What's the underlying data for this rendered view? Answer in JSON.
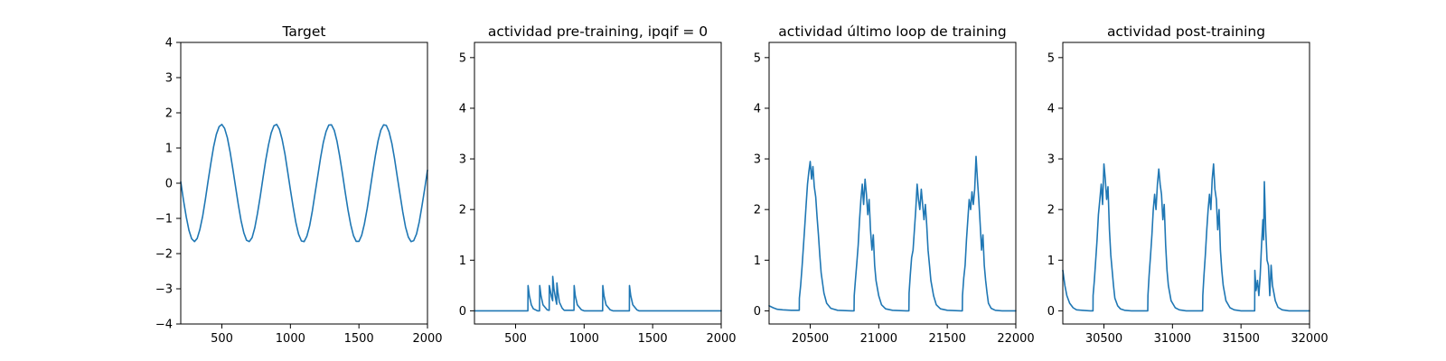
{
  "figure": {
    "line_color": "#1f77b4"
  },
  "chart_data": [
    {
      "type": "line",
      "title": "Target",
      "xlim": [
        200,
        2000
      ],
      "ylim": [
        -4,
        4
      ],
      "xticks": [
        500,
        1000,
        1500,
        2000
      ],
      "yticks": [
        -4,
        -3,
        -2,
        -1,
        0,
        1,
        2,
        3,
        4
      ],
      "xtick_labels": [
        "500",
        "1000",
        "1500",
        "2000"
      ],
      "ytick_labels": [
        "−4",
        "−3",
        "−2",
        "−1",
        "0",
        "1",
        "2",
        "3",
        "4"
      ],
      "series": [
        {
          "x": [
            200,
            220,
            240,
            260,
            280,
            300,
            320,
            340,
            360,
            380,
            400,
            420,
            440,
            460,
            480,
            500,
            520,
            540,
            560,
            580,
            600,
            620,
            640,
            660,
            680,
            700,
            720,
            740,
            760,
            780,
            800,
            820,
            840,
            860,
            880,
            900,
            920,
            940,
            960,
            980,
            1000,
            1020,
            1040,
            1060,
            1080,
            1100,
            1120,
            1140,
            1160,
            1180,
            1200,
            1220,
            1240,
            1260,
            1280,
            1300,
            1320,
            1340,
            1360,
            1380,
            1400,
            1420,
            1440,
            1460,
            1480,
            1500,
            1520,
            1540,
            1560,
            1580,
            1600,
            1620,
            1640,
            1660,
            1680,
            1700,
            1720,
            1740,
            1760,
            1780,
            1800,
            1820,
            1840,
            1860,
            1880,
            1900,
            1920,
            1940,
            1960,
            1980,
            2000
          ],
          "y": [
            0.04,
            -0.48,
            -0.96,
            -1.34,
            -1.58,
            -1.66,
            -1.57,
            -1.31,
            -0.93,
            -0.45,
            0.07,
            0.58,
            1.04,
            1.39,
            1.61,
            1.67,
            1.56,
            1.29,
            0.89,
            0.41,
            -0.11,
            -0.61,
            -1.06,
            -1.41,
            -1.62,
            -1.66,
            -1.55,
            -1.27,
            -0.86,
            -0.37,
            0.15,
            0.65,
            1.09,
            1.43,
            1.63,
            1.67,
            1.53,
            1.24,
            0.83,
            0.33,
            -0.18,
            -0.68,
            -1.12,
            -1.45,
            -1.64,
            -1.66,
            -1.51,
            -1.21,
            -0.79,
            -0.29,
            0.22,
            0.72,
            1.15,
            1.47,
            1.65,
            1.66,
            1.5,
            1.19,
            0.76,
            0.26,
            -0.26,
            -0.75,
            -1.18,
            -1.49,
            -1.65,
            -1.65,
            -1.48,
            -1.16,
            -0.72,
            -0.22,
            0.29,
            0.79,
            1.21,
            1.51,
            1.66,
            1.64,
            1.46,
            1.13,
            0.69,
            0.18,
            -0.33,
            -0.82,
            -1.24,
            -1.53,
            -1.66,
            -1.63,
            -1.44,
            -1.1,
            -0.65,
            -0.15,
            0.37
          ]
        }
      ]
    },
    {
      "type": "line",
      "title": "actividad pre-training, ipqif = 0",
      "xlim": [
        200,
        2000
      ],
      "ylim": [
        -0.26,
        5.3
      ],
      "xticks": [
        500,
        1000,
        1500,
        2000
      ],
      "yticks": [
        0,
        1,
        2,
        3,
        4,
        5
      ],
      "xtick_labels": [
        "500",
        "1000",
        "1500",
        "2000"
      ],
      "ytick_labels": [
        "0",
        "1",
        "2",
        "3",
        "4",
        "5"
      ],
      "series": [
        {
          "x": [
            200,
            400,
            590,
            591,
            600,
            615,
            630,
            660,
            675,
            676,
            685,
            700,
            730,
            745,
            746,
            752,
            762,
            770,
            771,
            780,
            795,
            800,
            801,
            808,
            820,
            840,
            855,
            926,
            927,
            935,
            950,
            980,
            1000,
            1135,
            1136,
            1145,
            1160,
            1190,
            1210,
            1330,
            1331,
            1340,
            1355,
            1385,
            1400,
            1700,
            2000
          ],
          "y": [
            0,
            0,
            0,
            0.5,
            0.3,
            0.12,
            0.04,
            0,
            0,
            0.5,
            0.3,
            0.12,
            0.02,
            0.01,
            0.5,
            0.42,
            0.28,
            0.2,
            0.68,
            0.42,
            0.2,
            0.13,
            0.55,
            0.38,
            0.17,
            0.05,
            0.01,
            0.01,
            0.5,
            0.3,
            0.12,
            0.02,
            0,
            0,
            0.5,
            0.3,
            0.12,
            0.02,
            0,
            0,
            0.5,
            0.3,
            0.12,
            0.02,
            0,
            0,
            0
          ]
        }
      ]
    },
    {
      "type": "line",
      "title": "actividad último loop de training",
      "xlim": [
        20200,
        22000
      ],
      "ylim": [
        -0.26,
        5.3
      ],
      "xticks": [
        20500,
        21000,
        21500,
        22000
      ],
      "yticks": [
        0,
        1,
        2,
        3,
        4,
        5
      ],
      "xtick_labels": [
        "20500",
        "21000",
        "21500",
        "22000"
      ],
      "ytick_labels": [
        "0",
        "1",
        "2",
        "3",
        "4",
        "5"
      ],
      "series": [
        {
          "x": [
            20200,
            20230,
            20260,
            20300,
            20360,
            20420,
            20421,
            20430,
            20440,
            20450,
            20460,
            20470,
            20480,
            20490,
            20500,
            20510,
            20520,
            20530,
            20540,
            20550,
            20560,
            20570,
            20580,
            20600,
            20620,
            20650,
            20700,
            20800,
            20820,
            20821,
            20830,
            20840,
            20850,
            20860,
            20870,
            20880,
            20890,
            20900,
            20910,
            20920,
            20930,
            20940,
            20950,
            20960,
            20970,
            20980,
            21000,
            21020,
            21050,
            21100,
            21200,
            21220,
            21221,
            21230,
            21240,
            21250,
            21260,
            21270,
            21280,
            21290,
            21300,
            21310,
            21320,
            21330,
            21340,
            21350,
            21360,
            21370,
            21380,
            21400,
            21420,
            21450,
            21500,
            21600,
            21610,
            21611,
            21620,
            21630,
            21640,
            21650,
            21660,
            21670,
            21680,
            21690,
            21700,
            21710,
            21720,
            21730,
            21740,
            21750,
            21760,
            21770,
            21780,
            21790,
            21800,
            21820,
            21850,
            21900,
            22000
          ],
          "y": [
            0.1,
            0.06,
            0.03,
            0.02,
            0.01,
            0.01,
            0.25,
            0.5,
            0.85,
            1.25,
            1.65,
            2.1,
            2.5,
            2.75,
            2.95,
            2.6,
            2.85,
            2.45,
            2.25,
            1.85,
            1.5,
            1.1,
            0.75,
            0.35,
            0.15,
            0.05,
            0.01,
            0,
            0,
            0.3,
            0.6,
            0.95,
            1.3,
            1.8,
            2.2,
            2.5,
            2.1,
            2.6,
            2.3,
            1.9,
            2.2,
            1.6,
            1.2,
            1.5,
            0.9,
            0.6,
            0.3,
            0.12,
            0.04,
            0.01,
            0,
            0,
            0.35,
            0.7,
            1.05,
            1.2,
            1.6,
            2.0,
            2.5,
            2.2,
            2.0,
            2.4,
            2.1,
            1.8,
            2.1,
            1.7,
            1.2,
            0.9,
            0.6,
            0.3,
            0.12,
            0.04,
            0.01,
            0,
            0,
            0.3,
            0.65,
            0.9,
            1.4,
            1.8,
            2.2,
            2.0,
            2.35,
            2.1,
            2.4,
            3.05,
            2.6,
            2.2,
            1.7,
            1.2,
            1.5,
            0.9,
            0.6,
            0.35,
            0.15,
            0.05,
            0.01,
            0,
            0
          ]
        }
      ]
    },
    {
      "type": "line",
      "title": "actividad post-training",
      "xlim": [
        30200,
        32000
      ],
      "ylim": [
        -0.26,
        5.3
      ],
      "xticks": [
        30500,
        31000,
        31500,
        32000
      ],
      "yticks": [
        0,
        1,
        2,
        3,
        4,
        5
      ],
      "xtick_labels": [
        "30500",
        "31000",
        "31500",
        "32000"
      ],
      "ytick_labels": [
        "0",
        "1",
        "2",
        "3",
        "4",
        "5"
      ],
      "series": [
        {
          "x": [
            30200,
            30215,
            30230,
            30250,
            30275,
            30300,
            30340,
            30400,
            30420,
            30421,
            30430,
            30440,
            30450,
            30460,
            30470,
            30480,
            30490,
            30500,
            30510,
            30520,
            30530,
            30540,
            30550,
            30560,
            30570,
            30580,
            30600,
            30620,
            30650,
            30700,
            30800,
            30820,
            30821,
            30830,
            30840,
            30850,
            30860,
            30870,
            30880,
            30890,
            30900,
            30910,
            30920,
            30930,
            30940,
            30950,
            30960,
            30970,
            30990,
            31020,
            31050,
            31100,
            31200,
            31220,
            31221,
            31230,
            31240,
            31250,
            31260,
            31270,
            31280,
            31290,
            31300,
            31310,
            31320,
            31330,
            31340,
            31350,
            31360,
            31370,
            31390,
            31420,
            31450,
            31500,
            31600,
            31601,
            31610,
            31620,
            31630,
            31640,
            31650,
            31660,
            31665,
            31670,
            31680,
            31690,
            31700,
            31710,
            31720,
            31730,
            31740,
            31750,
            31770,
            31800,
            31850,
            31900,
            32000
          ],
          "y": [
            0.8,
            0.5,
            0.3,
            0.15,
            0.06,
            0.02,
            0.01,
            0,
            0,
            0.3,
            0.6,
            1.0,
            1.4,
            1.9,
            2.2,
            2.5,
            2.1,
            2.9,
            2.6,
            2.2,
            2.45,
            1.6,
            1.1,
            0.8,
            0.5,
            0.25,
            0.1,
            0.04,
            0.01,
            0,
            0,
            0,
            0.3,
            0.7,
            1.1,
            1.5,
            2.0,
            2.3,
            2.0,
            2.5,
            2.8,
            2.5,
            2.3,
            1.8,
            2.1,
            1.3,
            0.8,
            0.5,
            0.2,
            0.06,
            0.02,
            0,
            0,
            0,
            0.3,
            0.7,
            1.1,
            1.6,
            2.0,
            2.3,
            2.0,
            2.6,
            2.9,
            2.4,
            2.2,
            1.6,
            2.0,
            1.2,
            0.8,
            0.5,
            0.2,
            0.06,
            0.02,
            0,
            0,
            0.8,
            0.4,
            0.6,
            0.3,
            0.7,
            1.3,
            1.8,
            1.4,
            2.55,
            1.6,
            1.0,
            0.9,
            0.3,
            0.9,
            0.5,
            0.35,
            0.2,
            0.07,
            0.02,
            0,
            0,
            0
          ]
        }
      ]
    }
  ]
}
